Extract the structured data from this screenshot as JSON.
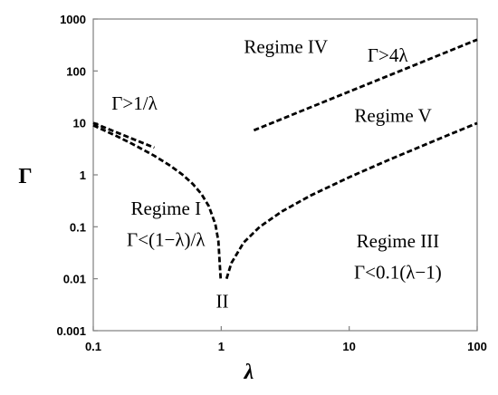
{
  "chart_data": {
    "type": "line",
    "title": "",
    "xlabel": "λ",
    "ylabel": "Γ",
    "xscale": "log",
    "yscale": "log",
    "xlim": [
      0.1,
      100
    ],
    "ylim": [
      0.001,
      1000
    ],
    "grid": false,
    "x_ticks": [
      "0.1",
      "1",
      "10",
      "100"
    ],
    "y_ticks": [
      "0.001",
      "0.01",
      "0.1",
      "1",
      "10",
      "100",
      "1000"
    ],
    "series": [
      {
        "relation": "Γ = (1−λ)/λ",
        "x": [
          0.1,
          0.15,
          0.2,
          0.3,
          0.4,
          0.5,
          0.6,
          0.7,
          0.8,
          0.9,
          0.95,
          0.99
        ],
        "y": [
          9.0,
          5.67,
          4.0,
          2.33,
          1.5,
          1.0,
          0.667,
          0.429,
          0.25,
          0.111,
          0.0526,
          0.0101
        ]
      },
      {
        "relation": "Γ = 1/λ",
        "x": [
          0.1,
          0.15,
          0.2,
          0.3
        ],
        "y": [
          10.0,
          6.67,
          5.0,
          3.33
        ]
      },
      {
        "relation": "Γ = 0.1(λ−1)",
        "x": [
          1.1,
          1.2,
          1.5,
          2,
          3,
          5,
          10,
          20,
          50,
          100
        ],
        "y": [
          0.01,
          0.02,
          0.05,
          0.1,
          0.2,
          0.4,
          0.9,
          1.9,
          4.9,
          9.9
        ]
      },
      {
        "relation": "Γ = 4λ",
        "x": [
          1.8,
          100
        ],
        "y": [
          7.2,
          400
        ]
      }
    ],
    "annotations": [
      {
        "text": "Regime IV",
        "x": 3.2,
        "y": 220
      },
      {
        "text": "Γ>4λ",
        "x": 20,
        "y": 150
      },
      {
        "text": "Γ>1/λ",
        "x": 0.21,
        "y": 18
      },
      {
        "text": "Regime V",
        "x": 22,
        "y": 10.5
      },
      {
        "text": "Regime I",
        "x": 0.37,
        "y": 0.17
      },
      {
        "text": "Γ<(1−λ)/λ",
        "x": 0.37,
        "y": 0.043
      },
      {
        "text": "Regime III",
        "x": 24,
        "y": 0.04
      },
      {
        "text": "Γ<0.1(λ−1)",
        "x": 24,
        "y": 0.01
      },
      {
        "text": "II",
        "x": 1.02,
        "y": 0.0028
      }
    ]
  }
}
